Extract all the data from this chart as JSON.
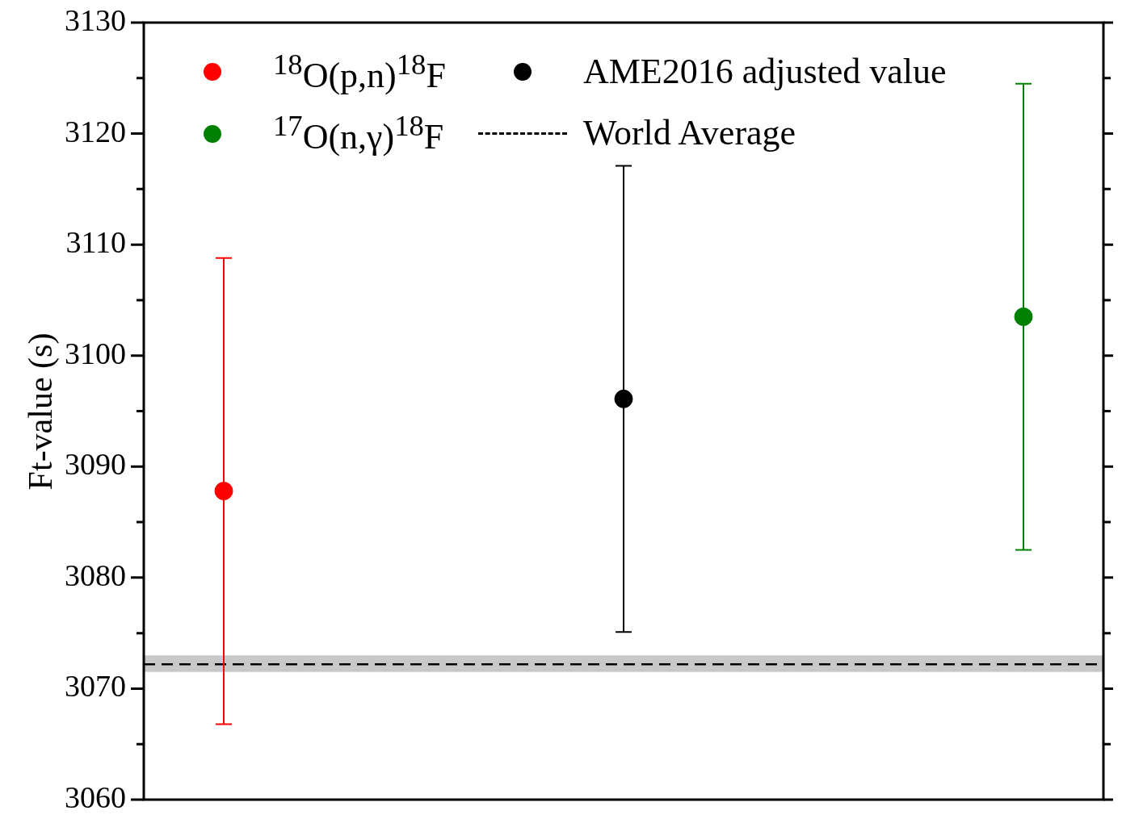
{
  "chart_data": {
    "type": "scatter",
    "ylabel": "Ft-value (s)",
    "categories": [
      null,
      null,
      null
    ],
    "series": [
      {
        "name": "$^{18}$O(p,n)$^{18}$F",
        "color": "#ff0000",
        "values": [
          3087.8,
          null,
          null
        ],
        "errors": [
          21,
          null,
          null
        ]
      },
      {
        "name": "AME2016 adjusted value",
        "color": "#000000",
        "values": [
          null,
          3096.1,
          null
        ],
        "errors": [
          null,
          21,
          null
        ]
      },
      {
        "name": "$^{17}$O(n,γ)$^{18}$F",
        "color": "#008000",
        "values": [
          null,
          null,
          3103.5
        ],
        "errors": [
          null,
          null,
          21
        ]
      }
    ],
    "ylim": [
      3060,
      3130
    ],
    "yticks": [
      3060,
      {
        "value": 3065,
        "label": null
      },
      3070,
      {
        "value": 3075,
        "label": null
      },
      3080,
      {
        "value": 3085,
        "label": null
      },
      3090,
      {
        "value": 3095,
        "label": null
      },
      3100,
      {
        "value": 3105,
        "label": null
      },
      3110,
      {
        "value": 3115,
        "label": null
      },
      3120,
      {
        "value": 3125,
        "label": null
      },
      3130
    ],
    "ref_lines": [
      {
        "axis": "y",
        "value": 3072.2,
        "label": "World Average",
        "color": "#000000",
        "line_style": "dashed"
      }
    ],
    "bands": [
      {
        "axis": "y",
        "from": 3071.5,
        "to": 3073,
        "color": "#c8c8c8"
      }
    ],
    "marker": "circle",
    "legend": "top left",
    "grid": false,
    "tick_labels": "y"
  }
}
